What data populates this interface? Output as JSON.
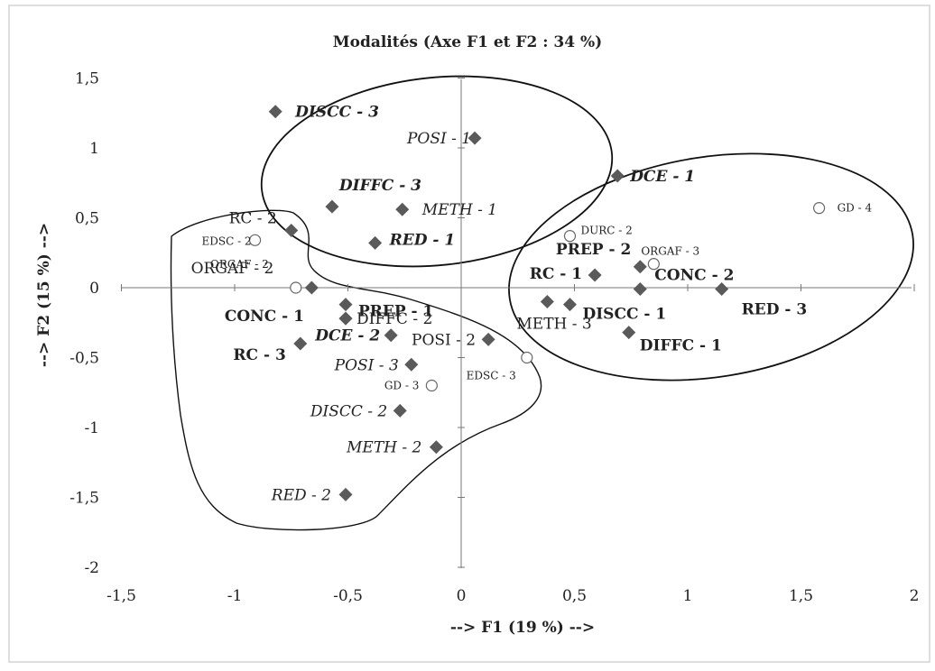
{
  "chart_data": {
    "type": "scatter",
    "title": "Modalités (Axe F1 et F2 : 34 %)",
    "xlabel": "--> F1 (19 %) -->",
    "ylabel": "--> F2 (15 %) -->",
    "xlim": [
      -1.5,
      2
    ],
    "ylim": [
      -2,
      1.5
    ],
    "x_ticks": [
      "-1,5",
      "-1",
      "-0,5",
      "0",
      "0,5",
      "1",
      "1,5",
      "2"
    ],
    "y_ticks": [
      "-2",
      "-1,5",
      "-1",
      "-0,5",
      "0",
      "0,5",
      "1",
      "1,5"
    ],
    "x_tick_values": [
      -1.5,
      -1,
      -0.5,
      0,
      0.5,
      1,
      1.5,
      2
    ],
    "y_tick_values": [
      -2,
      -1.5,
      -1,
      -0.5,
      0,
      0.5,
      1,
      1.5
    ],
    "marker_color": "#5a5a5a",
    "active_points": [
      {
        "label": "DISCC - 3",
        "x": -0.82,
        "y": 1.26,
        "style": "bold-italic"
      },
      {
        "label": "POSI - 1",
        "x": 0.06,
        "y": 1.07,
        "style": "italic"
      },
      {
        "label": "DCE - 1",
        "x": 0.69,
        "y": 0.8,
        "style": "bold-italic"
      },
      {
        "label": "DIFFC - 3",
        "x": -0.57,
        "y": 0.58,
        "style": "bold-italic"
      },
      {
        "label": "METH - 1",
        "x": -0.26,
        "y": 0.56,
        "style": "italic"
      },
      {
        "label": "RC - 2",
        "x": -0.75,
        "y": 0.41,
        "style": "normal"
      },
      {
        "label": "RED - 1",
        "x": -0.38,
        "y": 0.32,
        "style": "bold-italic"
      },
      {
        "label": "PREP - 2",
        "x": 0.79,
        "y": 0.15,
        "style": "bold"
      },
      {
        "label": "RC - 1",
        "x": 0.59,
        "y": 0.09,
        "style": "bold"
      },
      {
        "label": "ORGAF - 2",
        "x": -0.66,
        "y": 0.0,
        "style": "normal"
      },
      {
        "label": "CONC - 2",
        "x": 0.79,
        "y": -0.01,
        "style": "bold"
      },
      {
        "label": "RED - 3",
        "x": 1.15,
        "y": -0.01,
        "style": "bold"
      },
      {
        "label": "METH - 3",
        "x": 0.38,
        "y": -0.1,
        "style": "normal"
      },
      {
        "label": "DISCC - 1",
        "x": 0.48,
        "y": -0.12,
        "style": "bold"
      },
      {
        "label": "PREP - 1",
        "x": -0.51,
        "y": -0.12,
        "style": "bold"
      },
      {
        "label": "CONC - 1",
        "x": -0.51,
        "y": -0.22,
        "style": "bold"
      },
      {
        "label": "DIFFC - 2",
        "x": -0.51,
        "y": -0.22,
        "style": "normal"
      },
      {
        "label": "DIFFC - 1",
        "x": 0.74,
        "y": -0.32,
        "style": "bold"
      },
      {
        "label": "DCE - 2",
        "x": -0.31,
        "y": -0.34,
        "style": "bold-italic"
      },
      {
        "label": "POSI - 2",
        "x": 0.12,
        "y": -0.37,
        "style": "normal"
      },
      {
        "label": "RC - 3",
        "x": -0.71,
        "y": -0.4,
        "style": "bold"
      },
      {
        "label": "POSI - 3",
        "x": -0.22,
        "y": -0.55,
        "style": "italic"
      },
      {
        "label": "DISCC - 2",
        "x": -0.27,
        "y": -0.88,
        "style": "italic"
      },
      {
        "label": "METH - 2",
        "x": -0.11,
        "y": -1.14,
        "style": "italic"
      },
      {
        "label": "RED - 2",
        "x": -0.51,
        "y": -1.48,
        "style": "italic"
      }
    ],
    "supplementary_points": [
      {
        "label": "GD - 4",
        "x": 1.58,
        "y": 0.57
      },
      {
        "label": "DURC - 2",
        "x": 0.48,
        "y": 0.37
      },
      {
        "label": "EDSC - 2",
        "x": -0.91,
        "y": 0.34
      },
      {
        "label": "ORGAF - 3",
        "x": 0.85,
        "y": 0.17
      },
      {
        "label": "ORGAF - 2",
        "x": -0.73,
        "y": 0.0
      },
      {
        "label": "EDSC - 3",
        "x": 0.29,
        "y": -0.5
      },
      {
        "label": "GD - 3",
        "x": -0.13,
        "y": -0.7
      }
    ],
    "grid": false,
    "legend": "none"
  }
}
